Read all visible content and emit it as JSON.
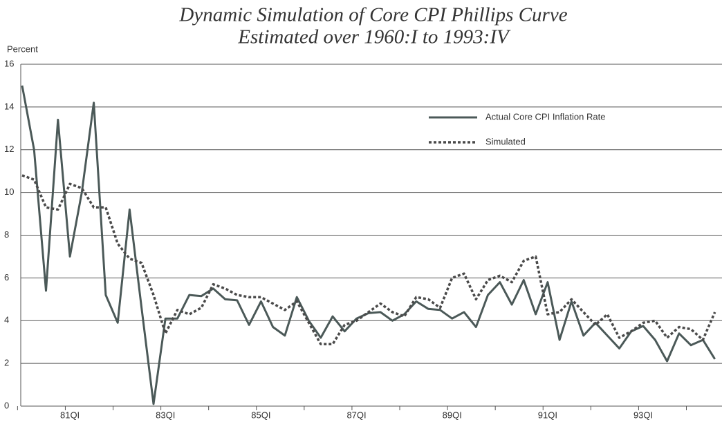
{
  "chart_data": {
    "type": "line",
    "title": "Dynamic Simulation of Core CPI Phillips Curve",
    "subtitle": "Estimated over 1960:I to 1993:IV",
    "y_label": "Percent",
    "categories": [
      null,
      null,
      null,
      null,
      "81QI",
      null,
      null,
      null,
      null,
      null,
      null,
      null,
      "83QI",
      null,
      null,
      null,
      null,
      null,
      null,
      null,
      "85QI",
      null,
      null,
      null,
      null,
      null,
      null,
      null,
      "87QI",
      null,
      null,
      null,
      null,
      null,
      null,
      null,
      "89QI",
      null,
      null,
      null,
      null,
      null,
      null,
      null,
      "91QI",
      null,
      null,
      null,
      null,
      null,
      null,
      null,
      "93QI",
      null,
      null,
      null,
      null,
      null,
      null
    ],
    "series": [
      {
        "name": "Actual Core CPI Inflation Rate",
        "color": "#4b5958",
        "line_style": "solid",
        "values": [
          15.0,
          12.0,
          5.4,
          13.4,
          7.0,
          10.0,
          14.2,
          5.2,
          3.9,
          9.2,
          4.6,
          0.1,
          4.1,
          4.1,
          5.2,
          5.15,
          5.5,
          5.0,
          4.95,
          3.8,
          4.9,
          3.7,
          3.3,
          5.1,
          4.0,
          3.2,
          4.2,
          3.5,
          4.1,
          4.35,
          4.4,
          4.0,
          4.3,
          4.9,
          4.55,
          4.5,
          4.1,
          4.4,
          3.7,
          5.2,
          5.8,
          4.75,
          5.9,
          4.3,
          5.8,
          3.1,
          4.9,
          3.3,
          3.9,
          3.3,
          2.7,
          3.5,
          3.75,
          3.1,
          2.1,
          3.4,
          2.85,
          3.1,
          2.2
        ]
      },
      {
        "name": "Simulated",
        "color": "#4a4a4a",
        "line_style": "dotted",
        "values": [
          10.8,
          10.6,
          9.3,
          9.2,
          10.4,
          10.2,
          9.3,
          9.3,
          7.6,
          6.9,
          6.7,
          5.2,
          3.4,
          4.5,
          4.3,
          4.6,
          5.7,
          5.5,
          5.2,
          5.1,
          5.1,
          4.8,
          4.5,
          4.9,
          3.9,
          2.9,
          2.9,
          3.8,
          4.0,
          4.4,
          4.8,
          4.4,
          4.2,
          5.1,
          5.0,
          4.6,
          6.0,
          6.2,
          5.0,
          5.9,
          6.1,
          5.8,
          6.8,
          7.0,
          4.3,
          4.4,
          5.0,
          4.4,
          3.8,
          4.3,
          3.2,
          3.5,
          3.9,
          4.0,
          3.2,
          3.7,
          3.6,
          3.1,
          4.4
        ]
      }
    ],
    "ylim": [
      0,
      16
    ],
    "yticks": [
      0,
      2,
      4,
      6,
      8,
      10,
      12,
      14,
      16
    ],
    "grid": true
  }
}
